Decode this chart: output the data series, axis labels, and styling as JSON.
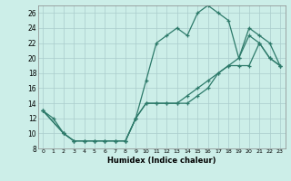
{
  "xlabel": "Humidex (Indice chaleur)",
  "bg_color": "#cceee8",
  "line_color": "#2d7a6a",
  "grid_color": "#aacccc",
  "xlim": [
    -0.5,
    23.5
  ],
  "ylim": [
    8,
    27
  ],
  "yticks": [
    8,
    10,
    12,
    14,
    16,
    18,
    20,
    22,
    24,
    26
  ],
  "xticks": [
    0,
    1,
    2,
    3,
    4,
    5,
    6,
    7,
    8,
    9,
    10,
    11,
    12,
    13,
    14,
    15,
    16,
    17,
    18,
    19,
    20,
    21,
    22,
    23
  ],
  "line1_x": [
    0,
    1,
    2,
    3,
    4,
    5,
    6,
    7,
    8,
    9,
    10,
    11,
    12,
    13,
    14,
    15,
    16,
    17,
    18,
    19,
    20,
    21,
    22,
    23
  ],
  "line1_y": [
    13,
    12,
    10,
    9,
    9,
    9,
    9,
    9,
    9,
    12,
    17,
    22,
    23,
    24,
    23,
    26,
    27,
    26,
    25,
    20,
    23,
    22,
    20,
    19
  ],
  "line2_x": [
    0,
    2,
    3,
    4,
    5,
    6,
    7,
    8,
    9,
    10,
    11,
    12,
    13,
    14,
    15,
    16,
    17,
    18,
    19,
    20,
    21,
    22,
    23
  ],
  "line2_y": [
    13,
    10,
    9,
    9,
    9,
    9,
    9,
    9,
    12,
    14,
    14,
    14,
    14,
    14,
    15,
    16,
    18,
    19,
    19,
    19,
    22,
    20,
    19
  ],
  "line3_x": [
    0,
    2,
    3,
    4,
    5,
    6,
    7,
    8,
    9,
    10,
    11,
    12,
    13,
    14,
    15,
    16,
    17,
    18,
    19,
    20,
    21,
    22,
    23
  ],
  "line3_y": [
    13,
    10,
    9,
    9,
    9,
    9,
    9,
    9,
    12,
    14,
    14,
    14,
    14,
    15,
    16,
    17,
    18,
    19,
    20,
    24,
    23,
    22,
    19
  ]
}
